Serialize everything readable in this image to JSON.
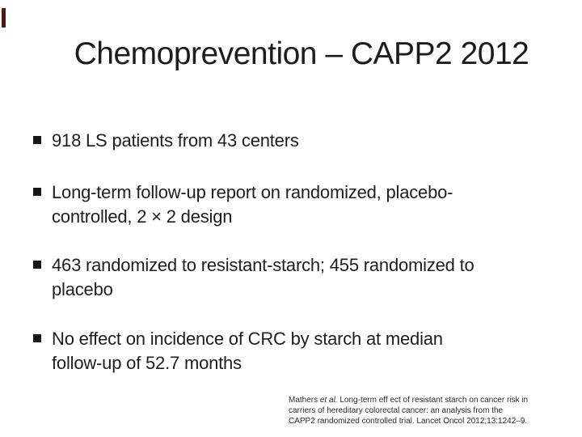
{
  "slide": {
    "title": "Chemoprevention – CAPP2 2012",
    "bullets": [
      {
        "lines": [
          "918 LS patients from 43 centers"
        ]
      },
      {
        "lines": [
          "Long-term follow-up report on randomized, placebo-",
          "controlled, 2 × 2 design"
        ]
      },
      {
        "lines": [
          "463 randomized to resistant-starch; 455 randomized to",
          "placebo"
        ]
      },
      {
        "lines": [
          "No effect on incidence of CRC by starch at median",
          "follow-up of 52.7 months"
        ]
      }
    ],
    "citation": {
      "line1_pre": "Mathers ",
      "line1_italic": "et al.",
      "line1_post": " Long-term eff ect of resistant starch on cancer risk in",
      "line2": "carriers of hereditary colorectal cancer: an analysis from the",
      "line3": "CAPP2 randomized controlled trial. Lancet Oncol 2012;13:1242–9."
    },
    "colors": {
      "background": "#ffffff",
      "text": "#1d1d1d",
      "bullet_marker": "#171717",
      "edge_accent": "#4f1a11"
    }
  }
}
